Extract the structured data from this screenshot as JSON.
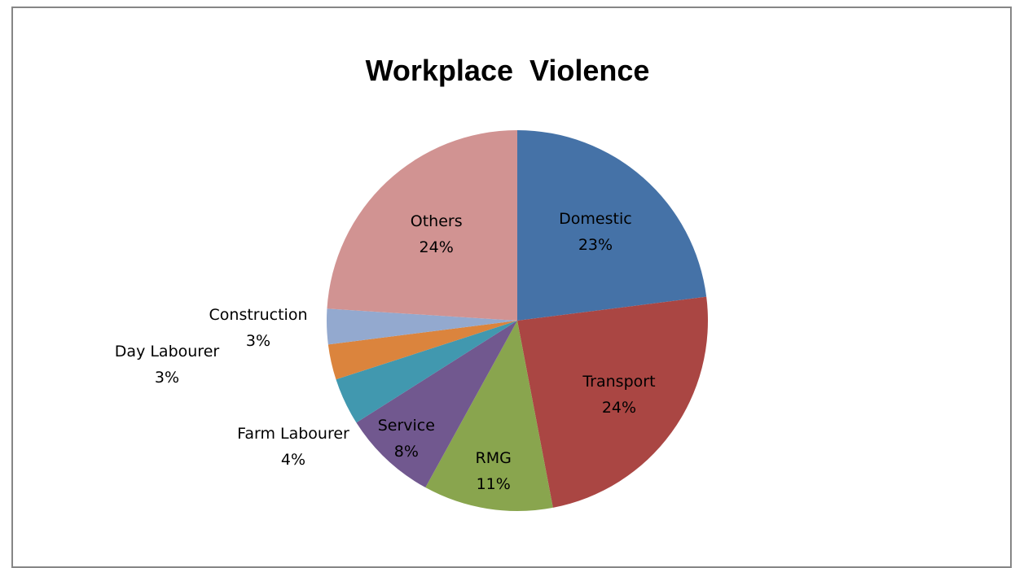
{
  "chart_data": {
    "type": "pie",
    "title": "Workplace  Violence",
    "slices": [
      {
        "label": "Domestic",
        "pct_label": "23%",
        "value": 23,
        "color": "#4572A7"
      },
      {
        "label": "Transport",
        "pct_label": "24%",
        "value": 24,
        "color": "#AA4643"
      },
      {
        "label": "RMG",
        "pct_label": "11%",
        "value": 11,
        "color": "#89A54E"
      },
      {
        "label": "Service",
        "pct_label": "8%",
        "value": 8,
        "color": "#71588F"
      },
      {
        "label": "Farm Labourer",
        "pct_label": "4%",
        "value": 4,
        "color": "#4198AF"
      },
      {
        "label": "Day Labourer",
        "pct_label": "3%",
        "value": 3,
        "color": "#DB843D"
      },
      {
        "label": "Construction",
        "pct_label": "3%",
        "value": 3,
        "color": "#93A9CF"
      },
      {
        "label": "Others",
        "pct_label": "24%",
        "value": 24,
        "color": "#D19392"
      }
    ]
  }
}
